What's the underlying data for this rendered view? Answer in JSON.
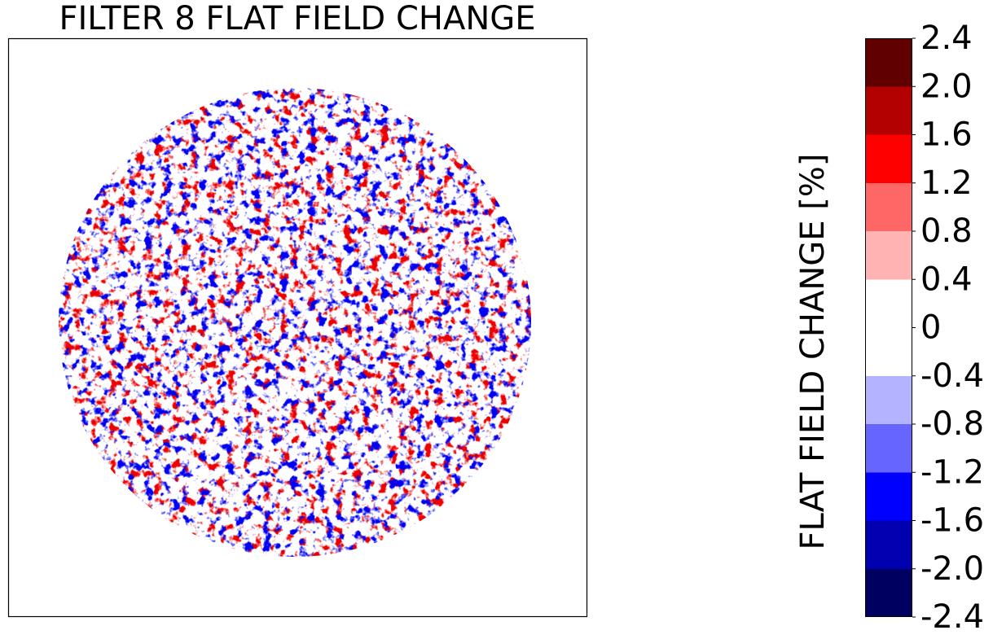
{
  "chart_data": {
    "type": "image",
    "title": "FILTER 8 FLAT FIELD CHANGE",
    "colorbar": {
      "label": "FLAT FIELD CHANGE [%]",
      "lim": [
        -2.4,
        2.4
      ],
      "ticks": [
        -2.4,
        {
          "value": -2,
          "label": "-2.0"
        },
        -1.6,
        -1.2,
        -0.8,
        -0.4,
        0,
        0.4,
        0.8,
        1.2,
        1.6,
        {
          "value": 2,
          "label": "2.0"
        },
        2.4
      ],
      "colors": [
        "#000060",
        "#0000b0",
        "#0000ff",
        "#6666ff",
        "#b3b3ff",
        "#ffffff",
        "#ffffff",
        "#ffb3b3",
        "#ff6666",
        "#ff0000",
        "#b30000",
        "#600000"
      ]
    }
  }
}
